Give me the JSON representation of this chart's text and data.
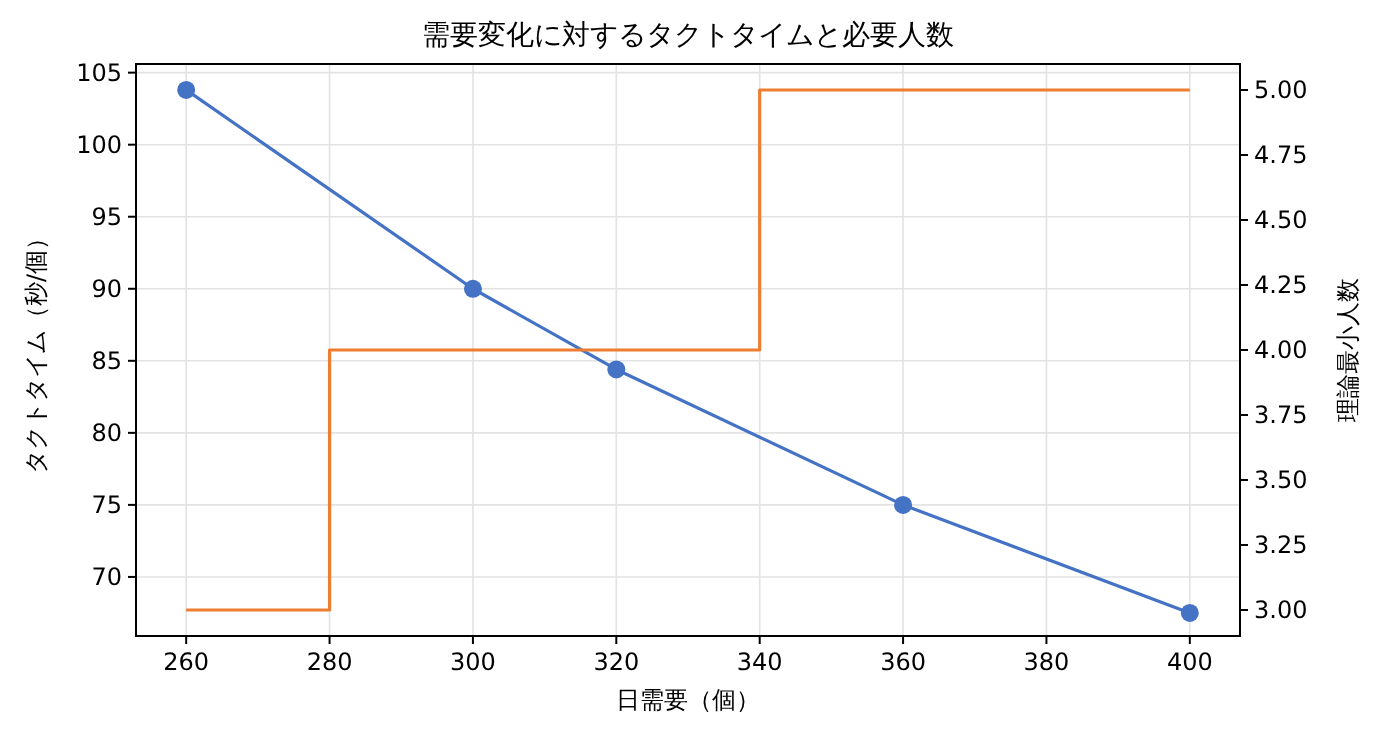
{
  "chart_data": {
    "type": "line",
    "title": "需要変化に対するタクトタイムと必要人数",
    "xlabel": "日需要（個）",
    "ylabel": "タクトタイム（秒/個）",
    "y2label": "理論最小人数",
    "x": [
      260,
      300,
      320,
      360,
      400
    ],
    "series": [
      {
        "type": "line",
        "color": "#4472c4",
        "marker": "circle",
        "values": [
          103.8,
          90,
          84.4,
          75,
          67.5
        ]
      },
      {
        "type": "step",
        "color": "#ed7d31",
        "marker": "none",
        "axis": "y2",
        "values": [
          3,
          4,
          4,
          5,
          5
        ]
      }
    ],
    "xlim": [
      253,
      407
    ],
    "xticks": [
      260,
      280,
      300,
      320,
      340,
      360,
      380,
      400
    ],
    "ylim": [
      65.9,
      105.6
    ],
    "yticks": [
      70,
      75,
      80,
      85,
      90,
      95,
      100,
      105
    ],
    "y2lim": [
      2.9,
      5.1
    ],
    "y2ticks": [
      {
        "value": 3,
        "label": "3.00"
      },
      {
        "value": 3.25,
        "label": "3.25"
      },
      {
        "value": 3.5,
        "label": "3.50"
      },
      {
        "value": 3.75,
        "label": "3.75"
      },
      {
        "value": 4,
        "label": "4.00"
      },
      {
        "value": 4.25,
        "label": "4.25"
      },
      {
        "value": 4.5,
        "label": "4.50"
      },
      {
        "value": 4.75,
        "label": "4.75"
      },
      {
        "value": 5,
        "label": "5.00"
      }
    ],
    "grid": true
  }
}
